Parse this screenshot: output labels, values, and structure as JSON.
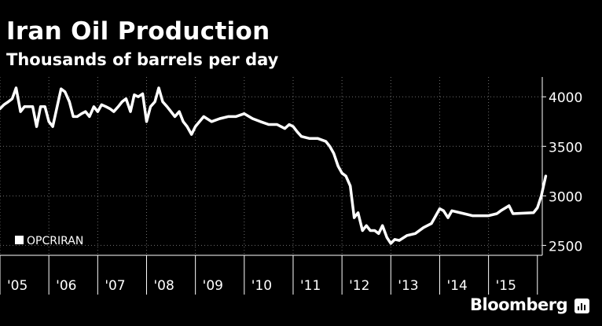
{
  "chart_data": {
    "type": "line",
    "title": "Iran Oil Production",
    "subtitle": "Thousands of barrels per day",
    "xlabel": "",
    "ylabel": "",
    "x_tick_labels": [
      "'05",
      "'06",
      "'07",
      "'08",
      "'09",
      "'10",
      "'11",
      "'12",
      "'13",
      "'14",
      "'15"
    ],
    "y_ticks": [
      2500,
      3000,
      3500,
      4000
    ],
    "ylim": [
      2400,
      4200
    ],
    "xlim": [
      2005.0,
      2016.1
    ],
    "grid": true,
    "legend": {
      "position": "bottom-left",
      "entries": [
        "OPCRIRAN"
      ]
    },
    "series": [
      {
        "name": "OPCRIRAN",
        "color": "#ffffff",
        "points": [
          [
            2005.0,
            3880
          ],
          [
            2005.08,
            3920
          ],
          [
            2005.17,
            3950
          ],
          [
            2005.25,
            3980
          ],
          [
            2005.33,
            4090
          ],
          [
            2005.42,
            3850
          ],
          [
            2005.5,
            3900
          ],
          [
            2005.58,
            3900
          ],
          [
            2005.67,
            3900
          ],
          [
            2005.75,
            3700
          ],
          [
            2005.83,
            3900
          ],
          [
            2005.92,
            3900
          ],
          [
            2006.0,
            3750
          ],
          [
            2006.08,
            3700
          ],
          [
            2006.17,
            3900
          ],
          [
            2006.25,
            4080
          ],
          [
            2006.33,
            4050
          ],
          [
            2006.42,
            3950
          ],
          [
            2006.5,
            3800
          ],
          [
            2006.58,
            3800
          ],
          [
            2006.67,
            3830
          ],
          [
            2006.75,
            3850
          ],
          [
            2006.83,
            3800
          ],
          [
            2006.92,
            3900
          ],
          [
            2007.0,
            3850
          ],
          [
            2007.08,
            3920
          ],
          [
            2007.17,
            3900
          ],
          [
            2007.25,
            3880
          ],
          [
            2007.33,
            3850
          ],
          [
            2007.42,
            3900
          ],
          [
            2007.5,
            3950
          ],
          [
            2007.58,
            3980
          ],
          [
            2007.67,
            3850
          ],
          [
            2007.75,
            4020
          ],
          [
            2007.83,
            4000
          ],
          [
            2007.92,
            4030
          ],
          [
            2008.0,
            3750
          ],
          [
            2008.08,
            3900
          ],
          [
            2008.17,
            3950
          ],
          [
            2008.25,
            4090
          ],
          [
            2008.33,
            3950
          ],
          [
            2008.42,
            3900
          ],
          [
            2008.5,
            3850
          ],
          [
            2008.58,
            3800
          ],
          [
            2008.67,
            3850
          ],
          [
            2008.75,
            3750
          ],
          [
            2008.83,
            3700
          ],
          [
            2008.92,
            3620
          ],
          [
            2009.0,
            3700
          ],
          [
            2009.17,
            3800
          ],
          [
            2009.33,
            3750
          ],
          [
            2009.5,
            3780
          ],
          [
            2009.67,
            3800
          ],
          [
            2009.83,
            3800
          ],
          [
            2010.0,
            3830
          ],
          [
            2010.17,
            3780
          ],
          [
            2010.33,
            3750
          ],
          [
            2010.5,
            3720
          ],
          [
            2010.67,
            3720
          ],
          [
            2010.83,
            3680
          ],
          [
            2010.92,
            3720
          ],
          [
            2011.0,
            3700
          ],
          [
            2011.08,
            3650
          ],
          [
            2011.17,
            3600
          ],
          [
            2011.33,
            3580
          ],
          [
            2011.5,
            3580
          ],
          [
            2011.67,
            3550
          ],
          [
            2011.75,
            3500
          ],
          [
            2011.83,
            3430
          ],
          [
            2011.92,
            3300
          ],
          [
            2012.0,
            3230
          ],
          [
            2012.08,
            3200
          ],
          [
            2012.17,
            3100
          ],
          [
            2012.25,
            2780
          ],
          [
            2012.33,
            2830
          ],
          [
            2012.42,
            2650
          ],
          [
            2012.5,
            2700
          ],
          [
            2012.58,
            2650
          ],
          [
            2012.67,
            2650
          ],
          [
            2012.75,
            2620
          ],
          [
            2012.83,
            2700
          ],
          [
            2012.92,
            2580
          ],
          [
            2013.0,
            2520
          ],
          [
            2013.08,
            2560
          ],
          [
            2013.17,
            2550
          ],
          [
            2013.33,
            2600
          ],
          [
            2013.5,
            2620
          ],
          [
            2013.67,
            2680
          ],
          [
            2013.83,
            2720
          ],
          [
            2013.92,
            2800
          ],
          [
            2014.0,
            2870
          ],
          [
            2014.08,
            2850
          ],
          [
            2014.17,
            2780
          ],
          [
            2014.25,
            2850
          ],
          [
            2014.5,
            2820
          ],
          [
            2014.67,
            2800
          ],
          [
            2015.0,
            2800
          ],
          [
            2015.17,
            2820
          ],
          [
            2015.25,
            2850
          ],
          [
            2015.42,
            2900
          ],
          [
            2015.5,
            2820
          ],
          [
            2015.92,
            2830
          ],
          [
            2016.0,
            2880
          ],
          [
            2016.08,
            3000
          ],
          [
            2016.17,
            3200
          ]
        ]
      }
    ]
  },
  "brand": {
    "name": "Bloomberg"
  }
}
